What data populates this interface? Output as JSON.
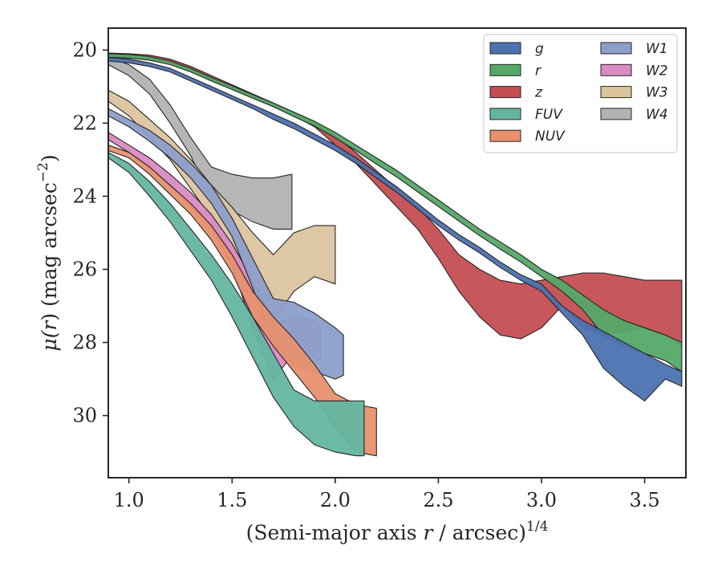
{
  "chart_data": {
    "type": "area",
    "xlabel": "(Semi-major axis r / arcsec)",
    "xlabel_parts": {
      "pre": "(Semi-major axis ",
      "var": "r",
      "post": " / arcsec)",
      "sup": "1/4"
    },
    "ylabel": "μ(r) (mag arcsec⁻²)",
    "ylabel_parts": {
      "pre": "μ(",
      "var": "r",
      "post": ") (mag arcsec",
      "sup": "−2",
      "end": ")"
    },
    "xlim": [
      0.9,
      3.7
    ],
    "ylim": [
      31.7,
      19.4
    ],
    "y_inverted": true,
    "xticks": [
      1.0,
      1.5,
      2.0,
      2.5,
      3.0,
      3.5
    ],
    "xtick_labels": [
      "1.0",
      "1.5",
      "2.0",
      "2.5",
      "3.0",
      "3.5"
    ],
    "yticks": [
      20,
      22,
      24,
      26,
      28,
      30
    ],
    "ytick_labels": [
      "20",
      "22",
      "24",
      "26",
      "28",
      "30"
    ],
    "grid": false,
    "legend": {
      "placement": "top-right",
      "columns": 2
    },
    "series": [
      {
        "name": "g",
        "color": "#4C72B0",
        "x": [
          0.9,
          1.0,
          1.1,
          1.2,
          1.3,
          1.4,
          1.5,
          1.6,
          1.7,
          1.8,
          1.9,
          2.0,
          2.1,
          2.2,
          2.3,
          2.4,
          2.5,
          2.6,
          2.7,
          2.8,
          2.9,
          3.0,
          3.1,
          3.2,
          3.3,
          3.4,
          3.5,
          3.6,
          3.68
        ],
        "lo": [
          20.2,
          20.25,
          20.35,
          20.5,
          20.75,
          21.0,
          21.25,
          21.5,
          21.75,
          22.0,
          22.3,
          22.6,
          22.95,
          23.35,
          23.75,
          24.2,
          24.65,
          25.05,
          25.4,
          25.8,
          26.15,
          26.4,
          27.0,
          27.4,
          27.7,
          28.0,
          28.3,
          28.6,
          28.8
        ],
        "hi": [
          20.3,
          20.35,
          20.45,
          20.6,
          20.85,
          21.1,
          21.35,
          21.6,
          21.9,
          22.15,
          22.45,
          22.75,
          23.1,
          23.5,
          23.9,
          24.35,
          24.8,
          25.2,
          25.55,
          25.95,
          26.3,
          26.6,
          27.2,
          27.8,
          28.7,
          29.2,
          29.6,
          29.0,
          29.2
        ]
      },
      {
        "name": "r",
        "color": "#55A868",
        "x": [
          0.9,
          1.0,
          1.1,
          1.2,
          1.3,
          1.4,
          1.5,
          1.6,
          1.7,
          1.8,
          1.9,
          2.0,
          2.1,
          2.2,
          2.3,
          2.4,
          2.5,
          2.6,
          2.7,
          2.8,
          2.9,
          3.0,
          3.1,
          3.2,
          3.3,
          3.4,
          3.5,
          3.6,
          3.68
        ],
        "lo": [
          20.1,
          20.12,
          20.18,
          20.3,
          20.5,
          20.75,
          20.98,
          21.22,
          21.45,
          21.7,
          21.95,
          22.25,
          22.6,
          22.95,
          23.3,
          23.7,
          24.1,
          24.5,
          24.9,
          25.25,
          25.6,
          26.0,
          26.3,
          26.7,
          27.1,
          27.4,
          27.6,
          27.8,
          28.0
        ],
        "hi": [
          20.2,
          20.22,
          20.28,
          20.4,
          20.6,
          20.85,
          21.08,
          21.32,
          21.55,
          21.82,
          22.08,
          22.4,
          22.75,
          23.12,
          23.48,
          23.88,
          24.28,
          24.68,
          25.08,
          25.45,
          25.8,
          26.2,
          26.6,
          27.1,
          27.8,
          28.1,
          28.3,
          28.5,
          28.8
        ]
      },
      {
        "name": "z",
        "color": "#C44E52",
        "x": [
          0.9,
          1.0,
          1.1,
          1.2,
          1.3,
          1.4,
          1.5,
          1.6,
          1.7,
          1.8,
          1.9,
          2.0,
          2.1,
          2.2,
          2.3,
          2.4,
          2.5,
          2.6,
          2.7,
          2.8,
          2.9,
          3.0,
          3.1,
          3.2,
          3.3,
          3.4,
          3.5,
          3.6,
          3.68
        ],
        "lo": [
          20.08,
          20.1,
          20.14,
          20.25,
          20.45,
          20.7,
          20.95,
          21.2,
          21.45,
          21.7,
          21.95,
          22.35,
          22.8,
          23.3,
          23.8,
          24.3,
          24.9,
          25.6,
          26.0,
          26.3,
          26.4,
          26.3,
          26.2,
          26.1,
          26.1,
          26.2,
          26.3,
          26.3,
          26.3
        ],
        "hi": [
          20.18,
          20.2,
          20.24,
          20.35,
          20.55,
          20.8,
          21.05,
          21.3,
          21.55,
          21.8,
          22.1,
          22.6,
          23.1,
          23.7,
          24.3,
          24.9,
          25.7,
          26.6,
          27.3,
          27.8,
          27.9,
          27.6,
          27.0,
          27.6,
          27.8,
          27.7,
          27.6,
          27.8,
          28.1
        ]
      },
      {
        "name": "FUV",
        "color": "#64B5A0",
        "x": [
          0.9,
          1.0,
          1.1,
          1.2,
          1.3,
          1.4,
          1.5,
          1.6,
          1.7,
          1.8,
          1.9,
          2.0,
          2.1,
          2.14
        ],
        "lo": [
          22.8,
          23.1,
          23.6,
          24.2,
          24.9,
          25.6,
          26.4,
          27.3,
          28.3,
          29.3,
          29.6,
          29.6,
          29.6,
          29.6
        ],
        "hi": [
          22.95,
          23.35,
          24.0,
          24.7,
          25.5,
          26.3,
          27.3,
          28.4,
          29.5,
          30.3,
          30.8,
          31.0,
          31.1,
          31.1
        ]
      },
      {
        "name": "NUV",
        "color": "#E8906E",
        "x": [
          0.9,
          1.0,
          1.1,
          1.2,
          1.3,
          1.4,
          1.5,
          1.6,
          1.7,
          1.8,
          1.9,
          2.0,
          2.1,
          2.2
        ],
        "lo": [
          22.6,
          22.8,
          23.2,
          23.7,
          24.2,
          24.8,
          25.6,
          26.6,
          27.3,
          27.9,
          28.6,
          29.4,
          29.7,
          29.8
        ],
        "hi": [
          22.75,
          22.95,
          23.4,
          23.95,
          24.5,
          25.2,
          26.1,
          27.3,
          28.1,
          28.8,
          29.5,
          30.3,
          31.0,
          31.1
        ]
      },
      {
        "name": "W1",
        "color": "#8C9FCA",
        "x": [
          0.9,
          1.0,
          1.1,
          1.2,
          1.3,
          1.4,
          1.5,
          1.6,
          1.7,
          1.8,
          1.9,
          2.0,
          2.04
        ],
        "lo": [
          21.6,
          21.9,
          22.2,
          22.6,
          23.1,
          23.7,
          24.6,
          25.7,
          26.8,
          26.9,
          27.2,
          27.6,
          27.8
        ],
        "hi": [
          21.8,
          22.1,
          22.5,
          22.95,
          23.5,
          24.2,
          25.1,
          26.5,
          28.0,
          28.6,
          28.8,
          29.0,
          28.9
        ]
      },
      {
        "name": "W2",
        "color": "#DA8BC3",
        "x": [
          0.9,
          1.0,
          1.1,
          1.2,
          1.3,
          1.4,
          1.5,
          1.6,
          1.7,
          1.8,
          1.9,
          1.93
        ],
        "lo": [
          22.25,
          22.6,
          22.95,
          23.4,
          23.9,
          24.5,
          25.3,
          26.3,
          27.5,
          27.3,
          27.4,
          27.6
        ],
        "hi": [
          22.45,
          22.8,
          23.2,
          23.7,
          24.3,
          24.9,
          25.9,
          27.6,
          29.0,
          28.3,
          28.4,
          28.5
        ]
      },
      {
        "name": "W3",
        "color": "#DCC49F",
        "x": [
          0.9,
          1.0,
          1.1,
          1.2,
          1.3,
          1.4,
          1.5,
          1.6,
          1.7,
          1.8,
          1.9,
          2.0
        ],
        "lo": [
          21.1,
          21.4,
          21.9,
          22.4,
          23.0,
          23.7,
          24.3,
          25.0,
          25.6,
          25.0,
          24.8,
          24.8
        ],
        "hi": [
          21.4,
          21.8,
          22.4,
          23.0,
          23.8,
          24.6,
          25.6,
          26.6,
          27.4,
          26.6,
          26.2,
          26.4
        ]
      },
      {
        "name": "W4",
        "color": "#B2B2B2",
        "x": [
          0.9,
          1.0,
          1.1,
          1.2,
          1.3,
          1.4,
          1.5,
          1.6,
          1.7,
          1.79
        ],
        "lo": [
          20.2,
          20.4,
          20.8,
          21.5,
          22.4,
          23.2,
          23.4,
          23.5,
          23.5,
          23.4
        ],
        "hi": [
          20.4,
          20.7,
          21.2,
          22.0,
          22.9,
          24.1,
          24.4,
          24.7,
          24.9,
          24.9
        ]
      }
    ]
  }
}
